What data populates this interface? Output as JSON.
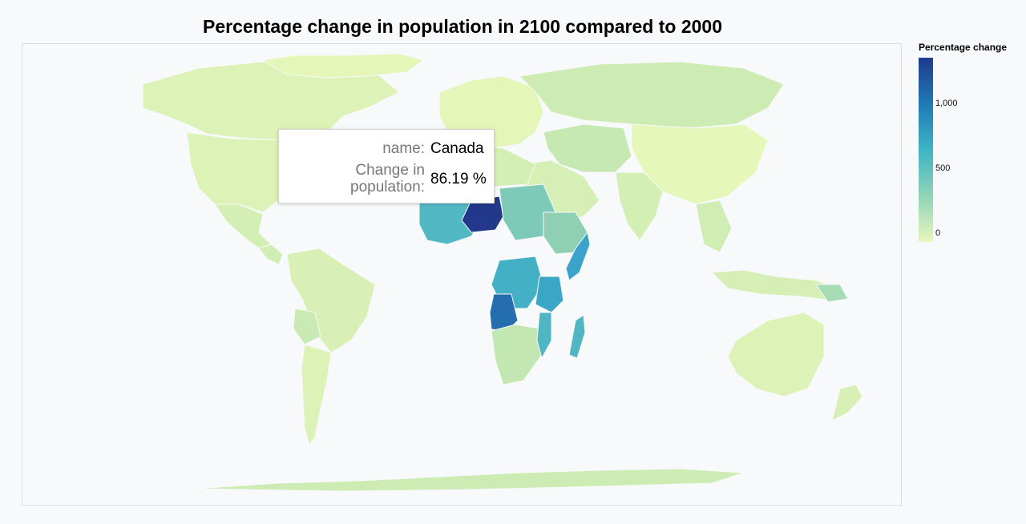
{
  "chart_data": {
    "type": "choropleth",
    "title": "Percentage change in population in 2100 compared to 2000",
    "legend": {
      "title": "Percentage change",
      "ticks": [
        "1,000",
        "500",
        "0"
      ],
      "tick_values": [
        1000,
        500,
        0
      ],
      "range": [
        0,
        1350
      ],
      "placement": "right",
      "colors": [
        "#e9f7bc",
        "#8fd4b8",
        "#3fb4c4",
        "#1f7ab5",
        "#1f3a8e"
      ]
    },
    "regions": [
      {
        "name": "Niger",
        "value": 1300
      },
      {
        "name": "Angola",
        "value": 1000
      },
      {
        "name": "Tanzania",
        "value": 700
      },
      {
        "name": "DR Congo",
        "value": 600
      },
      {
        "name": "Nigeria",
        "value": 600
      },
      {
        "name": "Somalia",
        "value": 650
      },
      {
        "name": "Madagascar",
        "value": 500
      },
      {
        "name": "Mali",
        "value": 550
      },
      {
        "name": "Canada",
        "value": 86.19
      }
    ]
  },
  "tooltip": {
    "name_label": "name:",
    "name_value": "Canada",
    "change_label_line1": "Change in",
    "change_label_line2": "population:",
    "change_value": "86.19 %"
  }
}
